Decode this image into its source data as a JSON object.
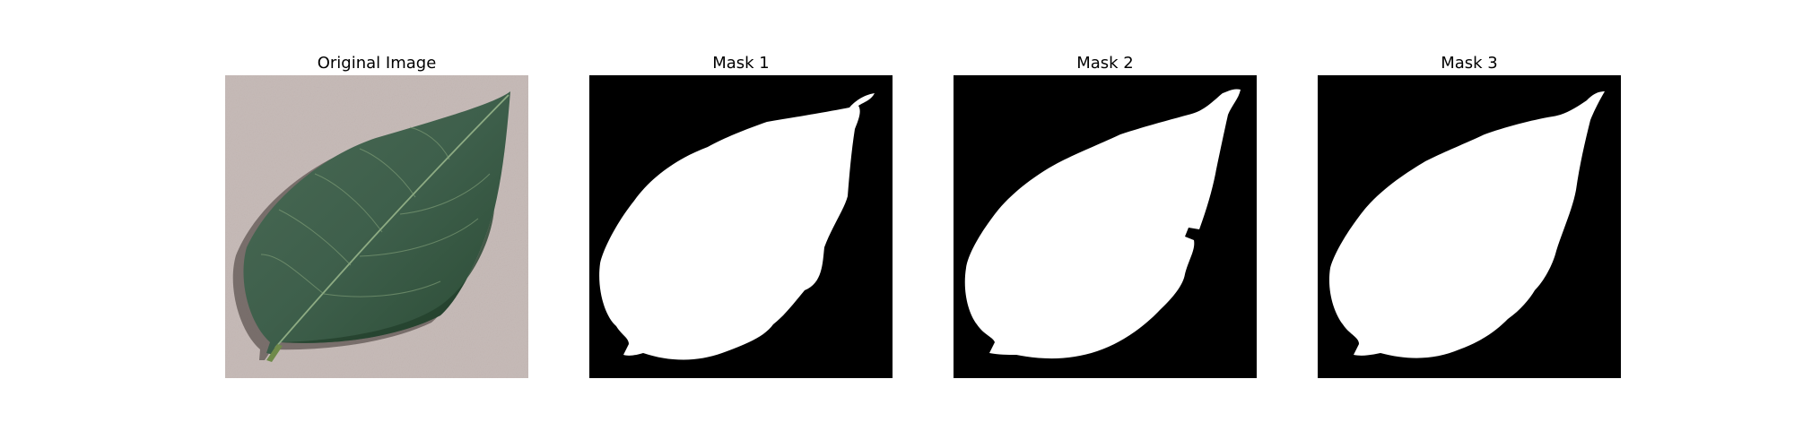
{
  "figure": {
    "panels": [
      {
        "title": "Original Image",
        "kind": "photo"
      },
      {
        "title": "Mask 1",
        "kind": "mask"
      },
      {
        "title": "Mask 2",
        "kind": "mask"
      },
      {
        "title": "Mask 3",
        "kind": "mask"
      }
    ]
  },
  "colors": {
    "background": "#c9bebb",
    "leaf_dark": "#2f4c3a",
    "leaf_mid": "#3e5f4b",
    "leaf_light": "#5a7a63",
    "vein": "#8fae85",
    "mask_fg": "#ffffff",
    "mask_bg": "#000000"
  }
}
